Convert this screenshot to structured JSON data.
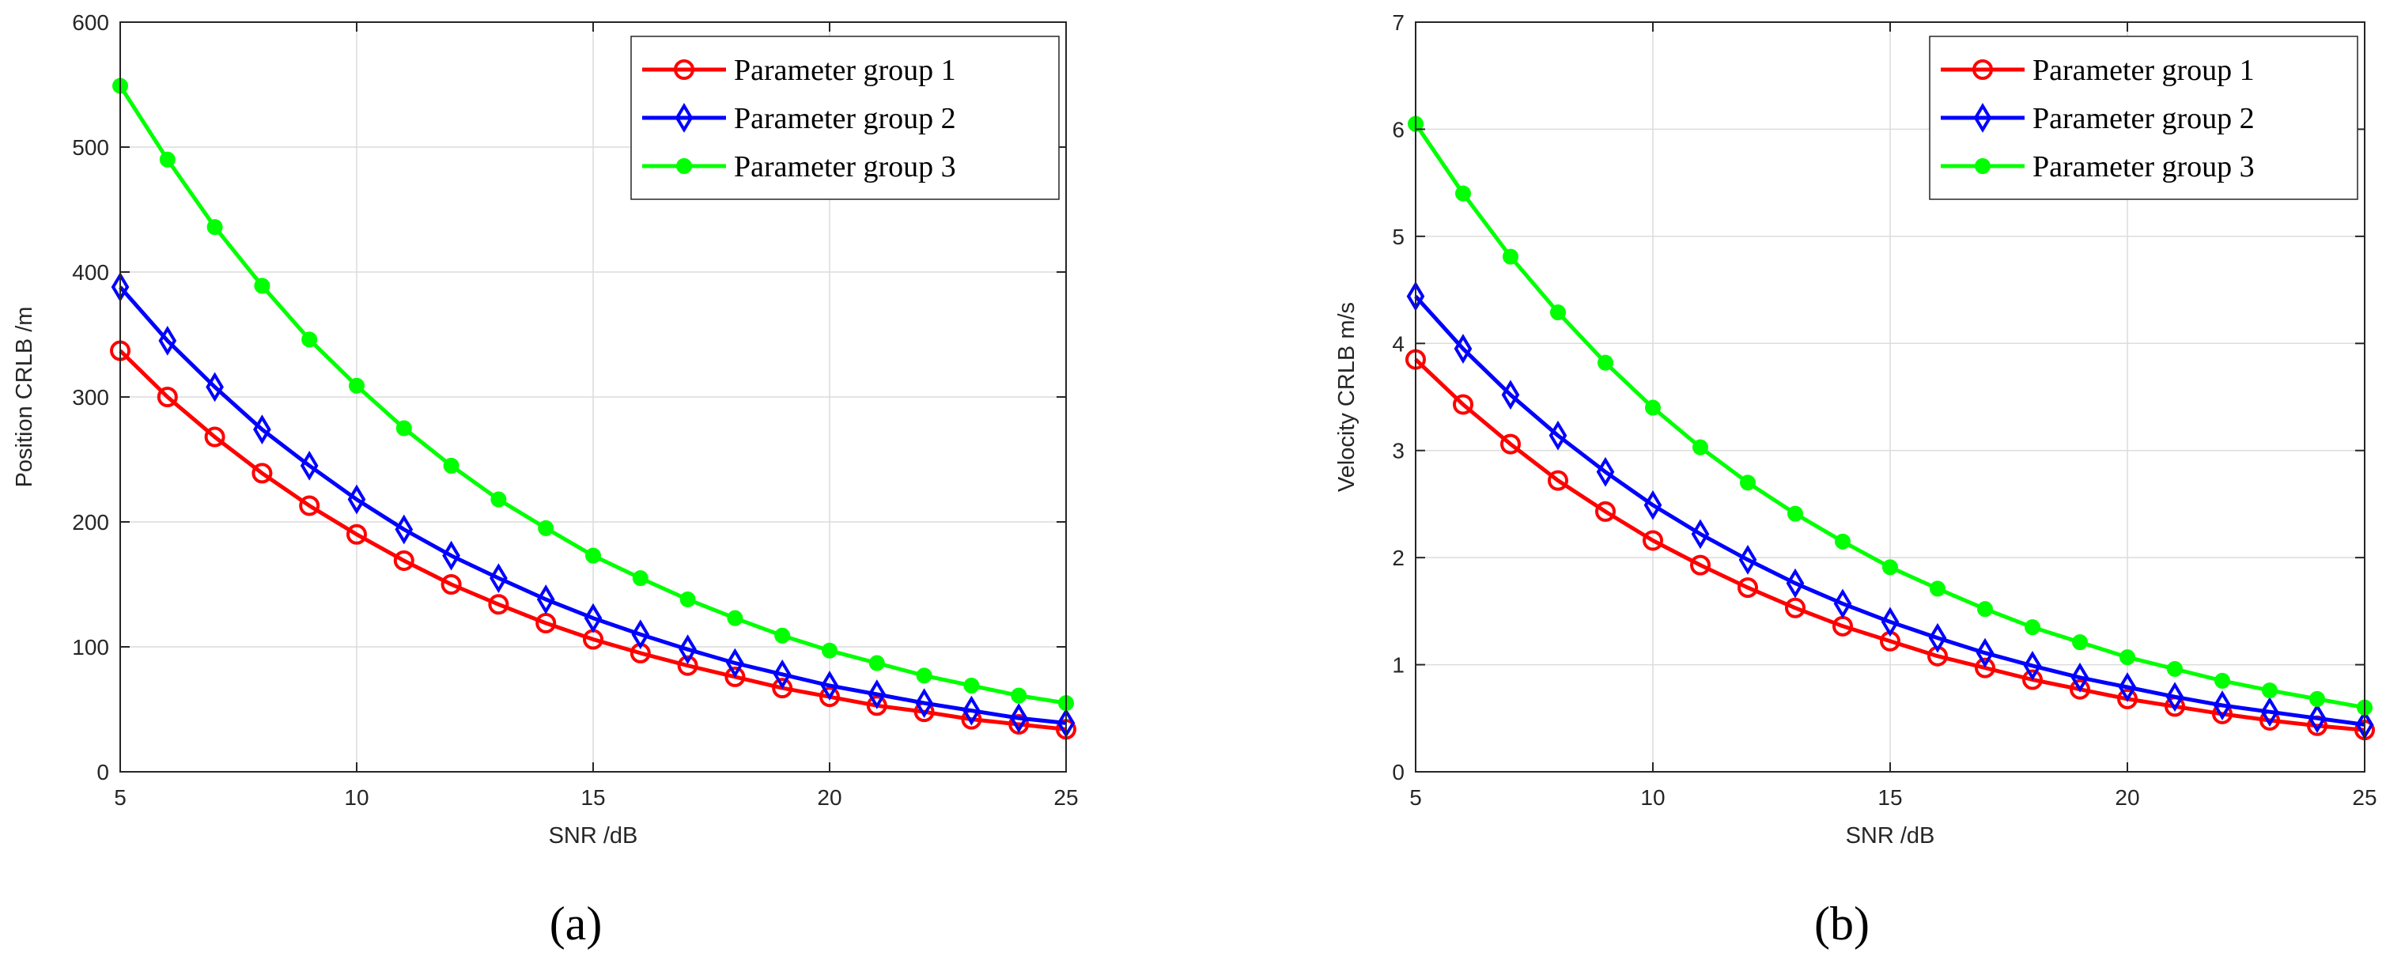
{
  "chart_data": [
    {
      "type": "line",
      "panel_label": "(a)",
      "xlabel": "SNR /dB",
      "ylabel": "Position CRLB /m",
      "xlim": [
        5,
        25
      ],
      "ylim": [
        0,
        600
      ],
      "xticks": [
        5,
        10,
        15,
        20,
        25
      ],
      "yticks": [
        0,
        100,
        200,
        300,
        400,
        500,
        600
      ],
      "grid": true,
      "legend_position": "top-right",
      "x": [
        5,
        6,
        7,
        8,
        9,
        10,
        11,
        12,
        13,
        14,
        15,
        16,
        17,
        18,
        19,
        20,
        21,
        22,
        23,
        24,
        25
      ],
      "series": [
        {
          "name": "Parameter group 1",
          "color": "#ff0000",
          "marker": "circle",
          "values": [
            337,
            300,
            268,
            239,
            213,
            190,
            169,
            150,
            134,
            119,
            106,
            95,
            85,
            76,
            67,
            60,
            53,
            48,
            42,
            38,
            34
          ]
        },
        {
          "name": "Parameter group 2",
          "color": "#0000ff",
          "marker": "diamond",
          "values": [
            388,
            345,
            308,
            274,
            245,
            218,
            194,
            173,
            155,
            138,
            123,
            110,
            98,
            87,
            78,
            69,
            62,
            55,
            49,
            43,
            39
          ]
        },
        {
          "name": "Parameter group 3",
          "color": "#00ff00",
          "marker": "dot",
          "values": [
            549,
            490,
            436,
            389,
            346,
            309,
            275,
            245,
            218,
            195,
            173,
            155,
            138,
            123,
            109,
            97,
            87,
            77,
            69,
            61,
            55
          ]
        }
      ]
    },
    {
      "type": "line",
      "panel_label": "(b)",
      "xlabel": "SNR /dB",
      "ylabel": "Velocity CRLB m/s",
      "xlim": [
        5,
        25
      ],
      "ylim": [
        0,
        7
      ],
      "xticks": [
        5,
        10,
        15,
        20,
        25
      ],
      "yticks": [
        0,
        1,
        2,
        3,
        4,
        5,
        6,
        7
      ],
      "grid": true,
      "legend_position": "top-right",
      "x": [
        5,
        6,
        7,
        8,
        9,
        10,
        11,
        12,
        13,
        14,
        15,
        16,
        17,
        18,
        19,
        20,
        21,
        22,
        23,
        24,
        25
      ],
      "series": [
        {
          "name": "Parameter group 1",
          "color": "#ff0000",
          "marker": "circle",
          "values": [
            3.85,
            3.43,
            3.06,
            2.72,
            2.43,
            2.16,
            1.93,
            1.72,
            1.53,
            1.36,
            1.22,
            1.08,
            0.97,
            0.86,
            0.77,
            0.68,
            0.61,
            0.54,
            0.48,
            0.43,
            0.39
          ]
        },
        {
          "name": "Parameter group 2",
          "color": "#0000ff",
          "marker": "diamond",
          "values": [
            4.44,
            3.95,
            3.52,
            3.14,
            2.8,
            2.49,
            2.22,
            1.98,
            1.76,
            1.57,
            1.4,
            1.25,
            1.11,
            0.99,
            0.88,
            0.79,
            0.7,
            0.62,
            0.56,
            0.5,
            0.44
          ]
        },
        {
          "name": "Parameter group 3",
          "color": "#00ff00",
          "marker": "dot",
          "values": [
            6.05,
            5.4,
            4.81,
            4.29,
            3.82,
            3.4,
            3.03,
            2.7,
            2.41,
            2.15,
            1.91,
            1.71,
            1.52,
            1.35,
            1.21,
            1.07,
            0.96,
            0.85,
            0.76,
            0.68,
            0.6
          ]
        }
      ]
    }
  ]
}
